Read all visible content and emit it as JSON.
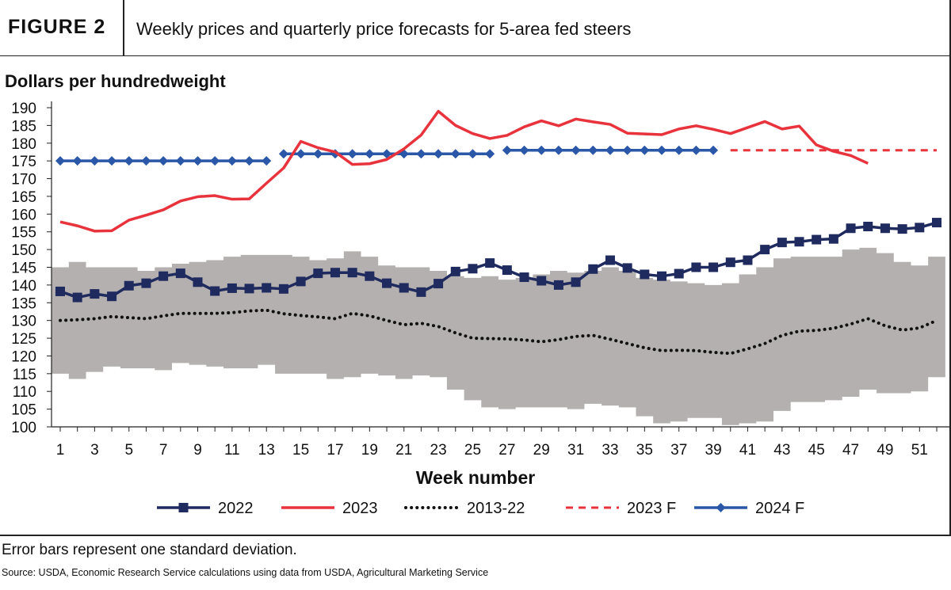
{
  "figure": {
    "label": "FIGURE 2",
    "title": "Weekly prices and quarterly price forecasts for 5-area fed steers",
    "footnote": "Error bars represent one standard deviation.",
    "source": "Source: USDA, Economic Research Service calculations using data from USDA, Agricultural Marketing Service"
  },
  "colors": {
    "s2022": "#1f2a5e",
    "s2023": "#e8333c",
    "avg": "#111111",
    "f2023": "#e8333c",
    "f2024": "#2a57a8",
    "band": "#b3b0af"
  },
  "chart_data": {
    "type": "line",
    "ylabel": "Dollars per hundredweight",
    "xlabel": "Week number",
    "ylim": [
      100,
      190
    ],
    "yticks": [
      100,
      105,
      110,
      115,
      120,
      125,
      130,
      135,
      140,
      145,
      150,
      155,
      160,
      165,
      170,
      175,
      180,
      185,
      190
    ],
    "xlim": [
      1,
      52
    ],
    "xticks": [
      1,
      3,
      5,
      7,
      9,
      11,
      13,
      15,
      17,
      19,
      21,
      23,
      25,
      27,
      29,
      31,
      33,
      35,
      37,
      39,
      41,
      43,
      45,
      47,
      49,
      51
    ],
    "legend_position": "bottom",
    "error_band": {
      "weeks": [
        1,
        2,
        3,
        4,
        5,
        6,
        7,
        8,
        9,
        10,
        11,
        12,
        13,
        14,
        15,
        16,
        17,
        18,
        19,
        20,
        21,
        22,
        23,
        24,
        25,
        26,
        27,
        28,
        29,
        30,
        31,
        32,
        33,
        34,
        35,
        36,
        37,
        38,
        39,
        40,
        41,
        42,
        43,
        44,
        45,
        46,
        47,
        48,
        49,
        50,
        51,
        52
      ],
      "upper": [
        145,
        146.5,
        145,
        145,
        145,
        144,
        145,
        146,
        146.5,
        147,
        148,
        148.5,
        148.5,
        148.5,
        148,
        147,
        147.5,
        149.5,
        148,
        145.5,
        145,
        145,
        144,
        142.5,
        142,
        142.5,
        141.5,
        142,
        143,
        144,
        143.5,
        144,
        145,
        144,
        142,
        141.5,
        141,
        140.5,
        140,
        140.5,
        143,
        145,
        147.5,
        148,
        148,
        148,
        150,
        150.5,
        149,
        146.5,
        145.5,
        148
      ],
      "lower": [
        115,
        113.5,
        115.5,
        117,
        116.5,
        116.5,
        116,
        118,
        117.5,
        117,
        116.5,
        116.5,
        117.5,
        115,
        115,
        115,
        113.5,
        114,
        115,
        114.5,
        113.5,
        114.5,
        114,
        110.5,
        107.5,
        105.5,
        105,
        105.5,
        105.5,
        105.5,
        105,
        106.5,
        106,
        105.5,
        103,
        101,
        101.5,
        102.5,
        102.5,
        100.5,
        101,
        101.5,
        104.5,
        107,
        107,
        107.5,
        108.5,
        110.5,
        109.5,
        109.5,
        110,
        114
      ]
    },
    "series": [
      {
        "name": "2022",
        "weeks": [
          1,
          2,
          3,
          4,
          5,
          6,
          7,
          8,
          9,
          10,
          11,
          12,
          13,
          14,
          15,
          16,
          17,
          18,
          19,
          20,
          21,
          22,
          23,
          24,
          25,
          26,
          27,
          28,
          29,
          30,
          31,
          32,
          33,
          34,
          35,
          36,
          37,
          38,
          39,
          40,
          41,
          42,
          43,
          44,
          45,
          46,
          47,
          48,
          49,
          50,
          51,
          52
        ],
        "values": [
          138.2,
          136.5,
          137.5,
          136.8,
          139.8,
          140.5,
          142.5,
          143.3,
          140.8,
          138.3,
          139.1,
          139.0,
          139.2,
          138.9,
          141.0,
          143.3,
          143.5,
          143.5,
          142.5,
          140.5,
          139.2,
          138.0,
          140.4,
          143.8,
          144.6,
          146.2,
          144.2,
          142.2,
          141.2,
          140.0,
          140.8,
          144.5,
          147.0,
          144.8,
          143.0,
          142.5,
          143.2,
          145.0,
          145.0,
          146.4,
          147.0,
          150.0,
          152.0,
          152.2,
          152.8,
          153.0,
          156.0,
          156.5,
          156.0,
          155.8,
          156.2,
          157.6
        ]
      },
      {
        "name": "2023",
        "weeks": [
          1,
          2,
          3,
          4,
          5,
          6,
          7,
          8,
          9,
          10,
          11,
          12,
          13,
          14,
          15,
          16,
          17,
          18,
          19,
          20,
          21,
          22,
          23,
          24,
          25,
          26,
          27,
          28,
          29,
          30,
          31,
          32,
          33,
          34,
          35,
          36,
          37,
          38,
          39,
          40,
          41,
          42,
          43,
          44,
          45,
          46,
          47,
          48
        ],
        "values": [
          157.8,
          156.7,
          155.2,
          155.3,
          158.3,
          159.7,
          161.2,
          163.7,
          164.9,
          165.2,
          164.2,
          164.3,
          168.7,
          173.0,
          180.5,
          178.7,
          177.5,
          174.0,
          174.2,
          175.4,
          178.4,
          182.3,
          189.0,
          185.0,
          182.7,
          181.3,
          182.2,
          184.6,
          186.3,
          184.9,
          186.8,
          186.0,
          185.3,
          182.8,
          182.6,
          182.4,
          184.0,
          184.9,
          183.9,
          182.7,
          184.4,
          186.1,
          184.0,
          184.8,
          179.5,
          177.7,
          176.5,
          174.3
        ]
      },
      {
        "name": "2013-22",
        "weeks": [
          1,
          2,
          3,
          4,
          5,
          6,
          7,
          8,
          9,
          10,
          11,
          12,
          13,
          14,
          15,
          16,
          17,
          18,
          19,
          20,
          21,
          22,
          23,
          24,
          25,
          26,
          27,
          28,
          29,
          30,
          31,
          32,
          33,
          34,
          35,
          36,
          37,
          38,
          39,
          40,
          41,
          42,
          43,
          44,
          45,
          46,
          47,
          48,
          49,
          50,
          51,
          52
        ],
        "values": [
          130.0,
          130.2,
          130.5,
          131.1,
          130.8,
          130.5,
          131.3,
          132.0,
          132.0,
          132.0,
          132.2,
          132.7,
          132.9,
          131.9,
          131.4,
          131.0,
          130.5,
          132.0,
          131.3,
          130.0,
          128.8,
          129.2,
          128.3,
          126.5,
          125.0,
          124.9,
          124.8,
          124.5,
          124.0,
          124.6,
          125.5,
          125.8,
          124.7,
          123.5,
          122.3,
          121.5,
          121.6,
          121.5,
          121.0,
          120.7,
          122.0,
          123.5,
          125.8,
          127.0,
          127.2,
          127.8,
          129.0,
          130.5,
          128.5,
          127.3,
          127.9,
          130.0
        ]
      },
      {
        "name": "2023 F",
        "weeks": [
          40,
          52
        ],
        "values": [
          178,
          178
        ]
      },
      {
        "name": "2024 F",
        "segments": [
          {
            "weeks": [
              1,
              2,
              3,
              4,
              5,
              6,
              7,
              8,
              9,
              10,
              11,
              12,
              13
            ],
            "values": [
              175,
              175,
              175,
              175,
              175,
              175,
              175,
              175,
              175,
              175,
              175,
              175,
              175
            ]
          },
          {
            "weeks": [
              14,
              15,
              16,
              17,
              18,
              19,
              20,
              21,
              22,
              23,
              24,
              25,
              26
            ],
            "values": [
              177,
              177,
              177,
              177,
              177,
              177,
              177,
              177,
              177,
              177,
              177,
              177,
              177
            ]
          },
          {
            "weeks": [
              27,
              28,
              29,
              30,
              31,
              32,
              33,
              34,
              35,
              36,
              37,
              38,
              39
            ],
            "values": [
              178,
              178,
              178,
              178,
              178,
              178,
              178,
              178,
              178,
              178,
              178,
              178,
              178
            ]
          }
        ]
      }
    ]
  }
}
